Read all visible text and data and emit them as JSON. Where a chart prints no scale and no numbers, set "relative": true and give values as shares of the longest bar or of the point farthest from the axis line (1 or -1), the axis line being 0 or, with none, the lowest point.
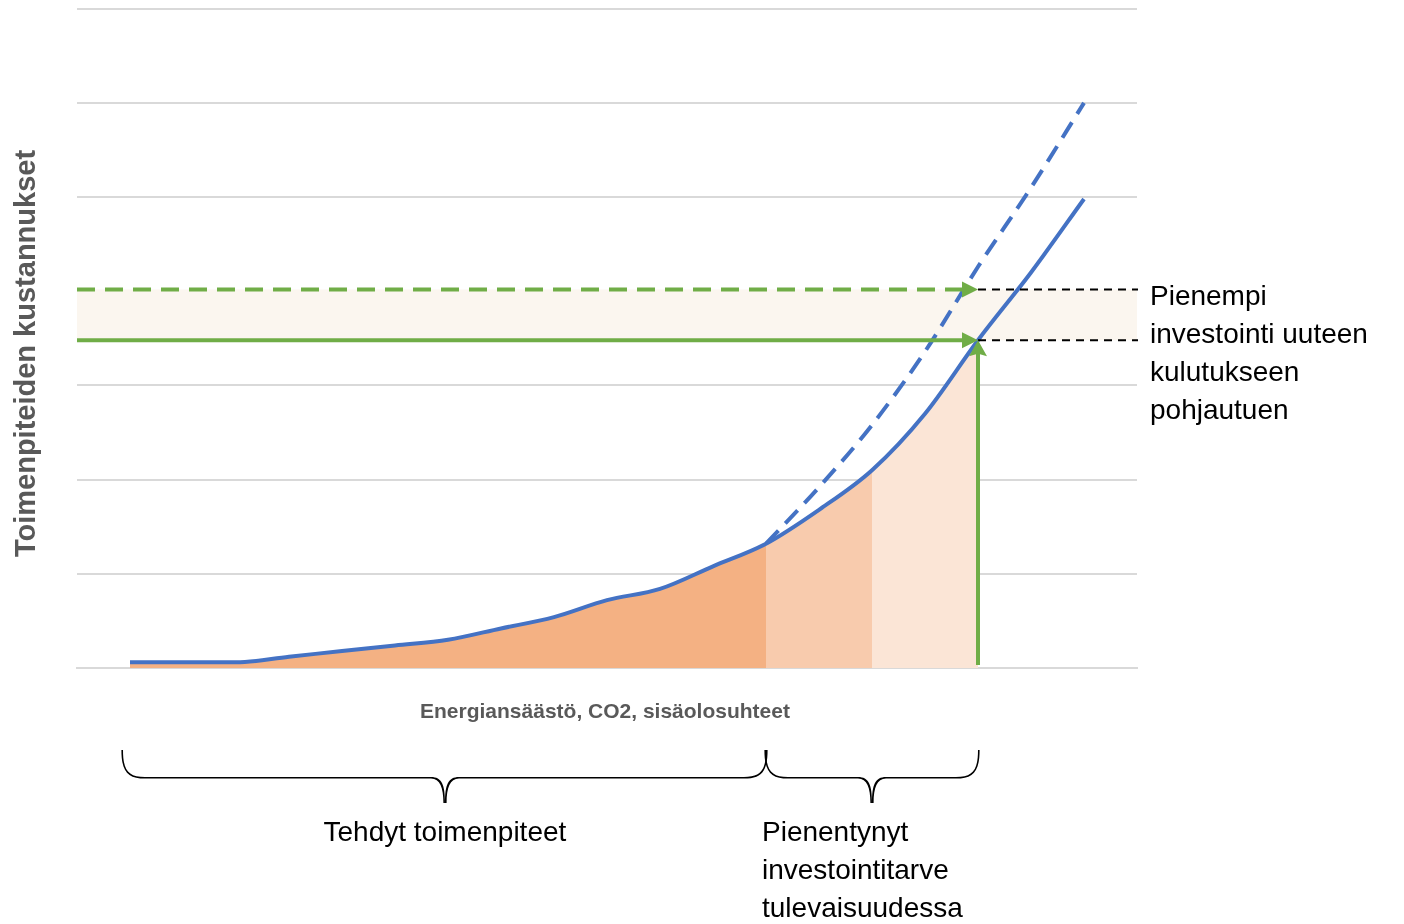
{
  "chart_data": {
    "type": "line",
    "relative": true,
    "xlabel": "Energiansäästö, CO2, sisäolosuhteet",
    "ylabel": "Toimenpiteiden kustannukset",
    "grid": "y",
    "legend": false,
    "marker": "none",
    "categories": [
      null,
      null,
      null,
      null,
      null,
      null,
      null,
      null,
      null,
      null,
      null,
      null,
      null,
      null,
      null,
      null,
      null,
      null,
      null,
      null,
      null
    ],
    "series": [
      {
        "type": "area",
        "color": "#f4b183",
        "values": [
          null,
          0.01,
          0.01,
          0.01,
          0.02,
          0.03,
          0.04,
          0.05,
          0.07,
          0.09,
          0.12,
          0.14,
          0.18,
          0.22,
          null,
          null,
          null,
          null,
          null,
          null,
          null
        ]
      },
      {
        "type": "area",
        "color": "#f8cbad",
        "values": [
          null,
          null,
          null,
          null,
          null,
          null,
          null,
          null,
          null,
          null,
          null,
          null,
          null,
          0.22,
          0.28,
          0.35,
          null,
          null,
          null,
          null,
          null
        ]
      },
      {
        "type": "area",
        "color": "#fbe5d6",
        "values": [
          null,
          null,
          null,
          null,
          null,
          null,
          null,
          null,
          null,
          null,
          null,
          null,
          null,
          null,
          null,
          0.35,
          0.45,
          0.58,
          null,
          null,
          null
        ]
      },
      {
        "color": "#4472c4",
        "line_style": "dashed",
        "values": [
          null,
          null,
          null,
          null,
          null,
          null,
          null,
          null,
          null,
          null,
          null,
          null,
          null,
          0.22,
          0.32,
          0.43,
          0.56,
          0.71,
          0.85,
          1,
          null
        ]
      },
      {
        "color": "#4472c4",
        "line_style": "solid",
        "values": [
          null,
          0.01,
          0.01,
          0.01,
          0.02,
          0.03,
          0.04,
          0.05,
          0.07,
          0.09,
          0.12,
          0.14,
          0.18,
          0.22,
          0.28,
          0.35,
          0.45,
          0.58,
          0.7,
          0.83,
          null
        ]
      }
    ],
    "ref_lines": [
      {
        "axis": "y",
        "value": 0.67,
        "color": "#70ad47",
        "line_style": "dashed"
      },
      {
        "axis": "y",
        "value": 0.58,
        "color": "#70ad47",
        "line_style": "solid"
      }
    ],
    "bands": [
      {
        "axis": "y",
        "from": 0.58,
        "to": 0.67,
        "color": "#fbf6ef"
      }
    ],
    "annotations": [
      "Pienempi investointi uuteen kulutukseen pohjautuen",
      "Tehdyt toimenpiteet",
      "Pienentynyt investointitarve tulevaisuudessa"
    ]
  }
}
